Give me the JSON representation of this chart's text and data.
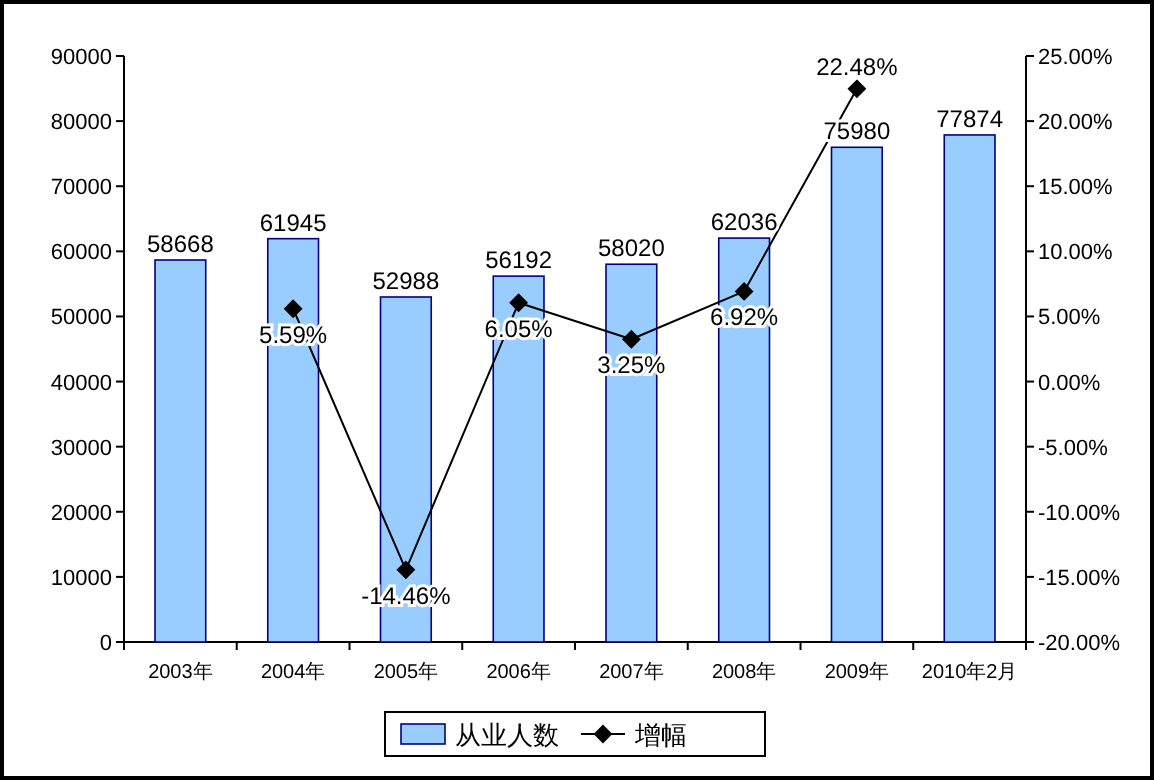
{
  "chart_data": {
    "type": "bar",
    "categories": [
      "2003年",
      "2004年",
      "2005年",
      "2006年",
      "2007年",
      "2008年",
      "2009年",
      "2010年2月"
    ],
    "series": [
      {
        "name": "从业人数",
        "color": "#99ccff",
        "values": [
          58668,
          61945,
          52988,
          56192,
          58020,
          62036,
          75980,
          77874
        ],
        "value_labels": [
          "58668",
          "61945",
          "52988",
          "56192",
          "58020",
          "62036",
          "75980",
          "77874"
        ]
      },
      {
        "name": "增幅",
        "type": "line",
        "axis": "y2",
        "color": "#000000",
        "marker": "diamond",
        "values": [
          null,
          5.59,
          -14.46,
          6.05,
          3.25,
          6.92,
          22.48,
          null
        ],
        "value_labels": [
          null,
          "5.59%",
          "-14.46%",
          "6.05%",
          "3.25%",
          "6.92%",
          "22.48%",
          null
        ]
      }
    ],
    "ylim": [
      0,
      90000
    ],
    "yticks": [
      0,
      10000,
      20000,
      30000,
      40000,
      50000,
      60000,
      70000,
      80000,
      90000
    ],
    "y2lim": [
      -20,
      25
    ],
    "y2ticks": [
      {
        "value": -20,
        "label": "-20.00%"
      },
      {
        "value": -15,
        "label": "-15.00%"
      },
      {
        "value": -10,
        "label": "-10.00%"
      },
      {
        "value": -5,
        "label": "-5.00%"
      },
      {
        "value": 0,
        "label": "0.00%"
      },
      {
        "value": 5,
        "label": "5.00%"
      },
      {
        "value": 10,
        "label": "10.00%"
      },
      {
        "value": 15,
        "label": "15.00%"
      },
      {
        "value": 20,
        "label": "20.00%"
      },
      {
        "value": 25,
        "label": "25.00%"
      }
    ],
    "legend": "bottom"
  }
}
